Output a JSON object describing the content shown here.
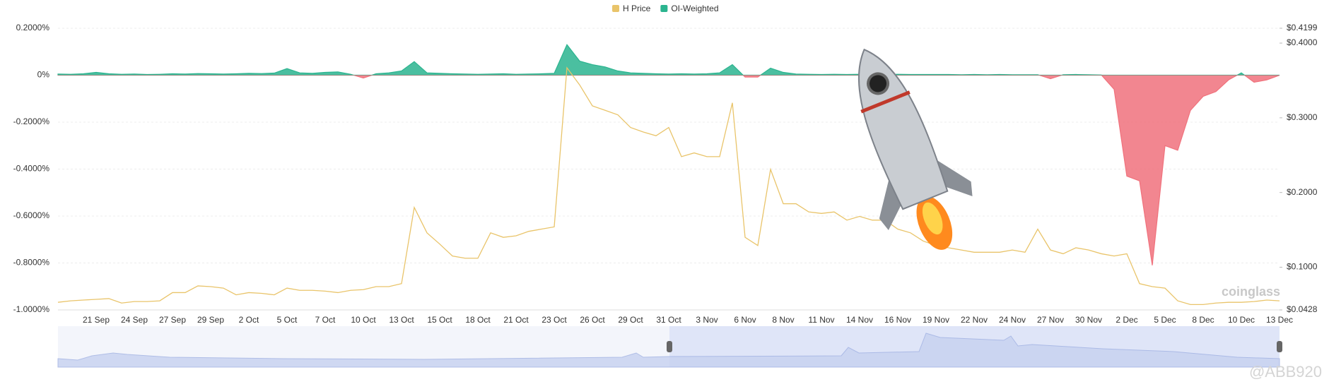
{
  "chart_data": {
    "type": "combo",
    "legend": "top",
    "grid": true,
    "watermark": "coinglass",
    "credit": "@ABB920",
    "categories": [
      null,
      null,
      null,
      "21 Sep",
      null,
      null,
      "24 Sep",
      null,
      null,
      "27 Sep",
      null,
      null,
      "29 Sep",
      null,
      null,
      "2 Oct",
      null,
      null,
      "5 Oct",
      null,
      null,
      "7 Oct",
      null,
      null,
      "10 Oct",
      null,
      null,
      "13 Oct",
      null,
      null,
      "15 Oct",
      null,
      null,
      "18 Oct",
      null,
      null,
      "21 Oct",
      null,
      null,
      "23 Oct",
      null,
      null,
      "26 Oct",
      null,
      null,
      "29 Oct",
      null,
      null,
      "31 Oct",
      null,
      null,
      "3 Nov",
      null,
      null,
      "6 Nov",
      null,
      null,
      "8 Nov",
      null,
      null,
      "11 Nov",
      null,
      null,
      "14 Nov",
      null,
      null,
      "16 Nov",
      null,
      null,
      "19 Nov",
      null,
      null,
      "22 Nov",
      null,
      null,
      "24 Nov",
      null,
      null,
      "27 Nov",
      null,
      null,
      "30 Nov",
      null,
      null,
      "2 Dec",
      null,
      null,
      "5 Dec",
      null,
      null,
      "8 Dec",
      null,
      null,
      "10 Dec",
      null,
      null,
      "13 Dec"
    ],
    "ylim": [
      -1.0,
      0.2
    ],
    "yticks": [
      {
        "value": 0.2,
        "label": "0.2000%"
      },
      {
        "value": 0,
        "label": "0%"
      },
      {
        "value": -0.2,
        "label": "-0.2000%"
      },
      {
        "value": -0.4,
        "label": "-0.4000%"
      },
      {
        "value": -0.6,
        "label": "-0.6000%"
      },
      {
        "value": -0.8,
        "label": "-0.8000%"
      },
      {
        "value": -1.0,
        "label": "-1.0000%"
      }
    ],
    "y2lim": [
      0.0428,
      0.4199
    ],
    "y2ticks": [
      {
        "value": 0.4199,
        "label": "$0.4199"
      },
      {
        "value": 0.4,
        "label": "$0.4000"
      },
      {
        "value": 0.3,
        "label": "$0.3000"
      },
      {
        "value": 0.2,
        "label": "$0.2000"
      },
      {
        "value": 0.1,
        "label": "$0.1000"
      },
      {
        "value": 0.0428,
        "label": "$0.0428"
      }
    ],
    "series": [
      {
        "name": "H Price",
        "type": "line",
        "axis": "y2",
        "color": "#e9c46a",
        "values": [
          0.053,
          0.055,
          0.056,
          0.057,
          0.058,
          0.052,
          0.054,
          0.054,
          0.055,
          0.066,
          0.066,
          0.075,
          0.074,
          0.072,
          0.063,
          0.066,
          0.065,
          0.063,
          0.072,
          0.069,
          0.069,
          0.068,
          0.066,
          0.069,
          0.07,
          0.074,
          0.074,
          0.078,
          0.18,
          0.146,
          0.131,
          0.115,
          0.112,
          0.112,
          0.146,
          0.14,
          0.142,
          0.148,
          0.151,
          0.154,
          0.367,
          0.344,
          0.316,
          0.31,
          0.304,
          0.287,
          0.281,
          0.276,
          0.287,
          0.248,
          0.253,
          0.248,
          0.248,
          0.32,
          0.14,
          0.129,
          0.231,
          0.185,
          0.185,
          0.174,
          0.172,
          0.174,
          0.163,
          0.168,
          0.163,
          0.163,
          0.151,
          0.146,
          0.135,
          0.129,
          0.126,
          0.123,
          0.12,
          0.12,
          0.12,
          0.123,
          0.12,
          0.151,
          0.123,
          0.118,
          0.126,
          0.123,
          0.118,
          0.115,
          0.118,
          0.078,
          0.074,
          0.072,
          0.055,
          0.05,
          0.05,
          0.052,
          0.053,
          0.053,
          0.054,
          0.056,
          0.055
        ]
      },
      {
        "name": "OI-Weighted",
        "type": "area",
        "color": "#2bb48f",
        "negative_color": "#f0717c",
        "values": [
          0.005,
          0.004,
          0.006,
          0.012,
          0.006,
          0.004,
          0.005,
          0.003,
          0.004,
          0.006,
          0.005,
          0.007,
          0.006,
          0.005,
          0.006,
          0.008,
          0.007,
          0.009,
          0.028,
          0.01,
          0.008,
          0.012,
          0.014,
          0.004,
          -0.012,
          0.006,
          0.01,
          0.018,
          0.058,
          0.01,
          0.008,
          0.006,
          0.005,
          0.004,
          0.005,
          0.006,
          0.004,
          0.005,
          0.006,
          0.008,
          0.13,
          0.06,
          0.045,
          0.035,
          0.018,
          0.01,
          0.008,
          0.006,
          0.005,
          0.006,
          0.005,
          0.006,
          0.01,
          0.045,
          -0.008,
          -0.008,
          0.03,
          0.012,
          0.005,
          0.004,
          0.003,
          0.004,
          0.003,
          0.004,
          0.003,
          0.003,
          0.004,
          0.003,
          0.003,
          0.003,
          0.003,
          0.002,
          0.003,
          0.002,
          0.003,
          0.002,
          0.002,
          0.002,
          -0.015,
          0.002,
          0.003,
          0.002,
          0.001,
          -0.06,
          -0.43,
          -0.45,
          -0.81,
          -0.3,
          -0.32,
          -0.15,
          -0.09,
          -0.07,
          -0.02,
          0.01,
          -0.03,
          -0.02,
          0.0
        ]
      }
    ]
  }
}
